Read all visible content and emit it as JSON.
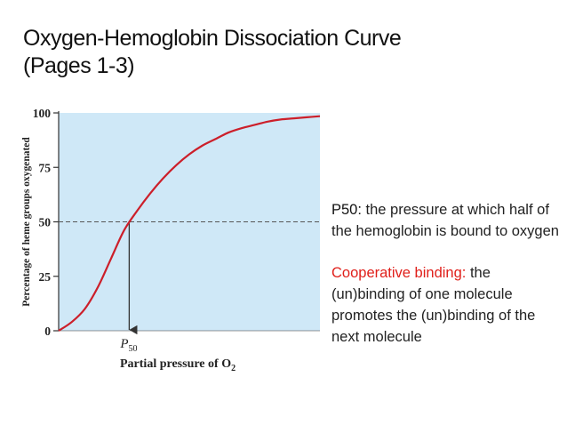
{
  "slide": {
    "title_line1": "Oxygen-Hemoglobin Dissociation Curve",
    "title_line2": "(Pages 1-3)"
  },
  "notes": [
    {
      "term": "P50:",
      "text": " the pressure at which half of the hemoglobin is bound to oxygen",
      "term_color": "#111111"
    },
    {
      "term": "Cooperative binding:",
      "text": " the (un)binding of one molecule promotes the (un)binding of the next molecule",
      "term_color": "#e0201b"
    }
  ],
  "chart_data": {
    "type": "line",
    "title": "",
    "xlabel": "Partial pressure of O",
    "xlabel_sub": "2",
    "ylabel": "Percentage of heme groups oxygenated",
    "ylim": [
      0,
      100
    ],
    "yticks": [
      "0",
      "25",
      "50",
      "75",
      "100"
    ],
    "p50_label": "P",
    "p50_sub": "50",
    "p50_value": 27,
    "xlim": [
      0,
      100
    ],
    "grid": false,
    "series": [
      {
        "x": [
          0,
          5,
          10,
          15,
          20,
          25,
          30,
          35,
          40,
          45,
          50,
          55,
          60,
          65,
          70,
          75,
          80,
          85,
          90,
          95,
          100
        ],
        "values": [
          0,
          4,
          10,
          20,
          33,
          46,
          55,
          63,
          70,
          76,
          81,
          85,
          88,
          91,
          93,
          94.5,
          96,
          97,
          97.5,
          98,
          98.5
        ]
      }
    ],
    "colors": {
      "curve": "#cc1f2a",
      "plot_bg": "#cfe8f7",
      "axis": "#333333"
    }
  }
}
